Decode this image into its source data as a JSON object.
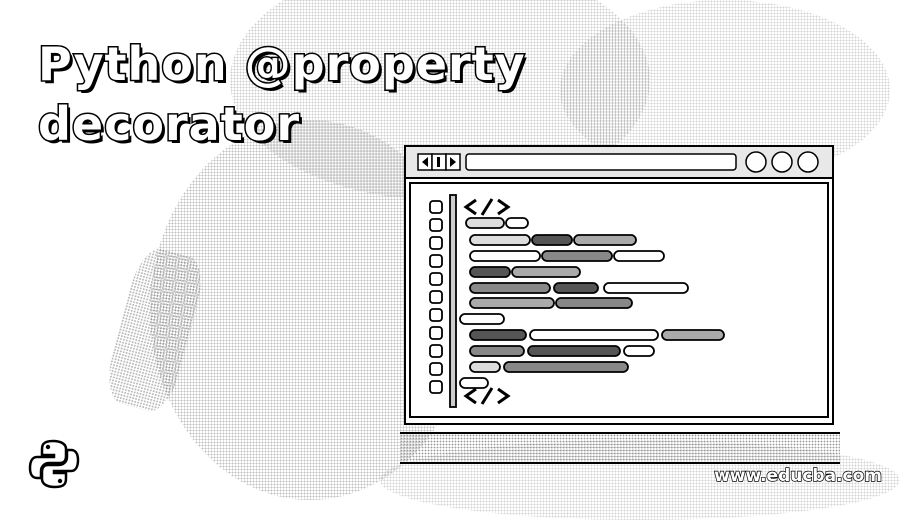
{
  "banner": {
    "title_line1": "Python @property",
    "title_line2": "decorator",
    "watermark": "www.educba.com"
  },
  "editor": {
    "nav_buttons": [
      "back-arrow",
      "bracket",
      "forward-arrow"
    ],
    "window_controls": [
      "minimize-circle",
      "maximize-circle",
      "close-circle"
    ],
    "code_open_tag": "</>",
    "code_close_tag": "</>"
  },
  "icons": {
    "logo": "python-logo-icon"
  },
  "colors": {
    "ink": "#000000",
    "paper": "#ffffff",
    "dither": "#777777"
  }
}
